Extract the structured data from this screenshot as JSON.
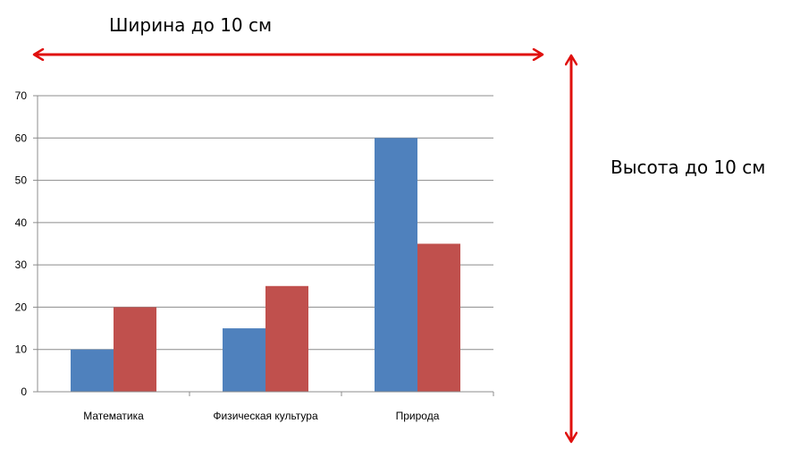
{
  "annotations": {
    "width_label": "Ширина до 10 см",
    "height_label": "Высота до 10 см",
    "arrow_color": "#e0100e"
  },
  "colors": {
    "series_1": "#4f81bd",
    "series_2": "#c0504d",
    "grid": "#8c8c8c"
  },
  "chart_data": {
    "type": "bar",
    "categories": [
      "Математика",
      "Физическая культура",
      "Природа"
    ],
    "series": [
      {
        "values": [
          10,
          15,
          60
        ]
      },
      {
        "values": [
          20,
          25,
          35
        ]
      }
    ],
    "yticks": [
      0,
      10,
      20,
      30,
      40,
      50,
      60,
      70
    ],
    "ylim": [
      0,
      70
    ],
    "grid": true,
    "legend": "none"
  }
}
